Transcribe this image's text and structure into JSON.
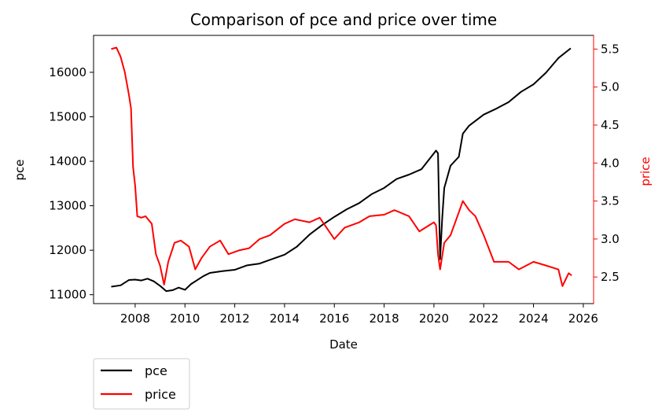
{
  "chart_data": {
    "type": "line",
    "title": "Comparison of pce and price over time",
    "xlabel": "Date",
    "ylabel_left": "pce",
    "ylabel_right": "price",
    "x_ticks": [
      "2008",
      "2010",
      "2012",
      "2014",
      "2016",
      "2018",
      "2020",
      "2022",
      "2024",
      "2026"
    ],
    "y_left_ticks": [
      "11000",
      "12000",
      "13000",
      "14000",
      "15000",
      "16000"
    ],
    "y_right_ticks": [
      "2.5",
      "3.0",
      "3.5",
      "4.0",
      "4.5",
      "5.0",
      "5.5"
    ],
    "xlim": [
      "2006-05-01",
      "2026-06-01"
    ],
    "ylim_left": [
      10800,
      16830
    ],
    "ylim_right": [
      2.15,
      5.68
    ],
    "grid": false,
    "legend_position": "below-left",
    "colors": {
      "pce": "#000000",
      "price": "#ff0000",
      "right_axis": "#ff0000"
    },
    "series": [
      {
        "name": "pce",
        "axis": "left",
        "points": [
          [
            "2007-01-15",
            11180
          ],
          [
            "2007-06-01",
            11210
          ],
          [
            "2007-10-01",
            11330
          ],
          [
            "2008-01-01",
            11340
          ],
          [
            "2008-04-01",
            11320
          ],
          [
            "2008-07-01",
            11360
          ],
          [
            "2008-10-01",
            11300
          ],
          [
            "2009-01-01",
            11200
          ],
          [
            "2009-04-01",
            11080
          ],
          [
            "2009-07-01",
            11100
          ],
          [
            "2009-10-01",
            11160
          ],
          [
            "2010-01-01",
            11110
          ],
          [
            "2010-04-01",
            11240
          ],
          [
            "2010-07-01",
            11330
          ],
          [
            "2010-10-01",
            11420
          ],
          [
            "2011-01-01",
            11490
          ],
          [
            "2011-07-01",
            11530
          ],
          [
            "2012-01-01",
            11560
          ],
          [
            "2012-07-01",
            11660
          ],
          [
            "2013-01-01",
            11700
          ],
          [
            "2013-07-01",
            11800
          ],
          [
            "2014-01-01",
            11900
          ],
          [
            "2014-07-01",
            12080
          ],
          [
            "2015-01-01",
            12350
          ],
          [
            "2015-07-01",
            12560
          ],
          [
            "2016-01-01",
            12750
          ],
          [
            "2016-07-01",
            12920
          ],
          [
            "2017-01-01",
            13060
          ],
          [
            "2017-07-01",
            13260
          ],
          [
            "2018-01-01",
            13400
          ],
          [
            "2018-07-01",
            13600
          ],
          [
            "2019-01-01",
            13700
          ],
          [
            "2019-07-01",
            13820
          ],
          [
            "2020-01-01",
            14180
          ],
          [
            "2020-02-01",
            14240
          ],
          [
            "2020-03-01",
            14180
          ],
          [
            "2020-04-01",
            11800
          ],
          [
            "2020-05-01",
            12700
          ],
          [
            "2020-06-01",
            13400
          ],
          [
            "2020-09-01",
            13900
          ],
          [
            "2021-01-01",
            14100
          ],
          [
            "2021-03-01",
            14620
          ],
          [
            "2021-06-01",
            14800
          ],
          [
            "2022-01-01",
            15050
          ],
          [
            "2022-07-01",
            15180
          ],
          [
            "2023-01-01",
            15330
          ],
          [
            "2023-07-01",
            15560
          ],
          [
            "2024-01-01",
            15730
          ],
          [
            "2024-07-01",
            15990
          ],
          [
            "2025-01-01",
            16320
          ],
          [
            "2025-07-01",
            16540
          ]
        ]
      },
      {
        "name": "price",
        "axis": "right",
        "points": [
          [
            "2007-01-15",
            5.5
          ],
          [
            "2007-04-01",
            5.52
          ],
          [
            "2007-06-01",
            5.4
          ],
          [
            "2007-08-01",
            5.2
          ],
          [
            "2007-10-01",
            4.9
          ],
          [
            "2007-11-01",
            4.72
          ],
          [
            "2007-12-01",
            3.95
          ],
          [
            "2008-01-01",
            3.7
          ],
          [
            "2008-02-01",
            3.3
          ],
          [
            "2008-04-01",
            3.28
          ],
          [
            "2008-06-01",
            3.3
          ],
          [
            "2008-09-01",
            3.2
          ],
          [
            "2008-11-01",
            2.8
          ],
          [
            "2009-01-01",
            2.65
          ],
          [
            "2009-03-01",
            2.4
          ],
          [
            "2009-05-01",
            2.7
          ],
          [
            "2009-08-01",
            2.95
          ],
          [
            "2009-11-01",
            2.98
          ],
          [
            "2010-03-01",
            2.9
          ],
          [
            "2010-06-01",
            2.6
          ],
          [
            "2010-09-01",
            2.75
          ],
          [
            "2011-01-01",
            2.9
          ],
          [
            "2011-06-01",
            2.98
          ],
          [
            "2011-10-01",
            2.8
          ],
          [
            "2012-03-01",
            2.85
          ],
          [
            "2012-08-01",
            2.88
          ],
          [
            "2013-01-01",
            3.0
          ],
          [
            "2013-06-01",
            3.05
          ],
          [
            "2014-01-01",
            3.2
          ],
          [
            "2014-06-01",
            3.26
          ],
          [
            "2015-01-01",
            3.22
          ],
          [
            "2015-06-01",
            3.28
          ],
          [
            "2016-01-01",
            3.0
          ],
          [
            "2016-06-01",
            3.15
          ],
          [
            "2017-01-01",
            3.22
          ],
          [
            "2017-06-01",
            3.3
          ],
          [
            "2018-01-01",
            3.32
          ],
          [
            "2018-06-01",
            3.38
          ],
          [
            "2019-01-01",
            3.3
          ],
          [
            "2019-06-01",
            3.1
          ],
          [
            "2020-01-01",
            3.22
          ],
          [
            "2020-02-01",
            3.18
          ],
          [
            "2020-03-01",
            2.8
          ],
          [
            "2020-04-01",
            2.6
          ],
          [
            "2020-06-01",
            2.95
          ],
          [
            "2020-09-01",
            3.05
          ],
          [
            "2021-01-01",
            3.35
          ],
          [
            "2021-03-01",
            3.5
          ],
          [
            "2021-06-01",
            3.38
          ],
          [
            "2021-09-01",
            3.3
          ],
          [
            "2022-01-01",
            3.05
          ],
          [
            "2022-06-01",
            2.7
          ],
          [
            "2023-01-01",
            2.7
          ],
          [
            "2023-06-01",
            2.6
          ],
          [
            "2024-01-01",
            2.7
          ],
          [
            "2024-06-01",
            2.66
          ],
          [
            "2025-01-01",
            2.6
          ],
          [
            "2025-03-01",
            2.38
          ],
          [
            "2025-06-01",
            2.55
          ],
          [
            "2025-07-15",
            2.52
          ]
        ]
      }
    ]
  }
}
